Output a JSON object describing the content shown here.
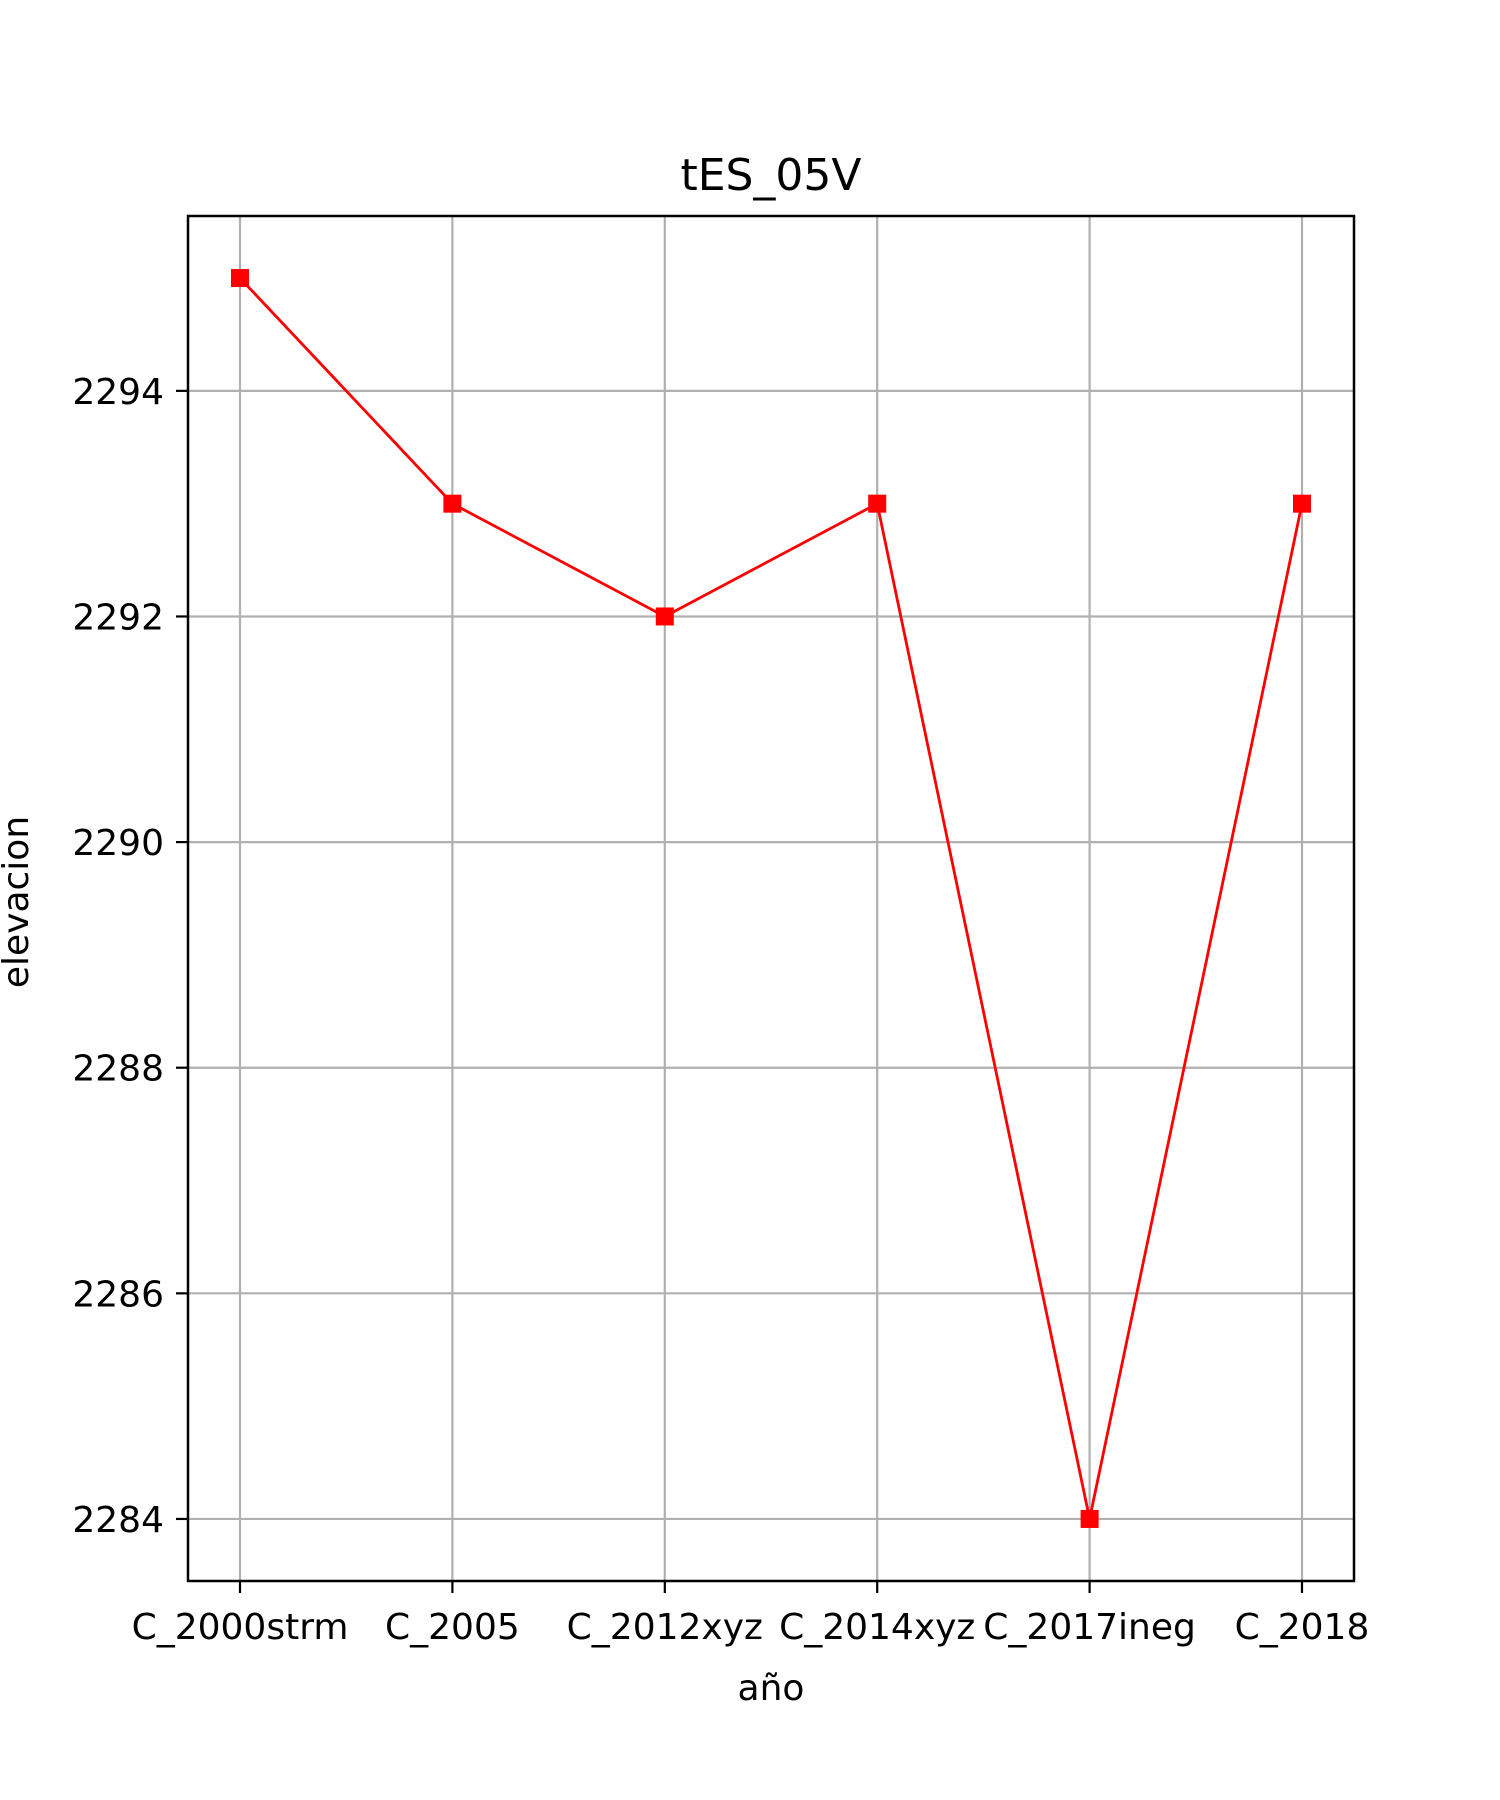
{
  "chart_data": {
    "type": "line",
    "title": "tES_05V",
    "xlabel": "año",
    "ylabel": "elevacion",
    "categories": [
      "C_2000strm",
      "C_2005",
      "C_2012xyz",
      "C_2014xyz",
      "C_2017ineg",
      "C_2018"
    ],
    "series": [
      {
        "values": [
          2295,
          2293,
          2292,
          2293,
          2284,
          2293
        ],
        "color": "#ff0000",
        "marker": "square"
      }
    ],
    "ylim": [
      2283.45,
      2295.55
    ],
    "yticks": [
      2284,
      2286,
      2288,
      2290,
      2292,
      2294
    ],
    "grid": true,
    "grid_color": "#b0b0b0"
  }
}
